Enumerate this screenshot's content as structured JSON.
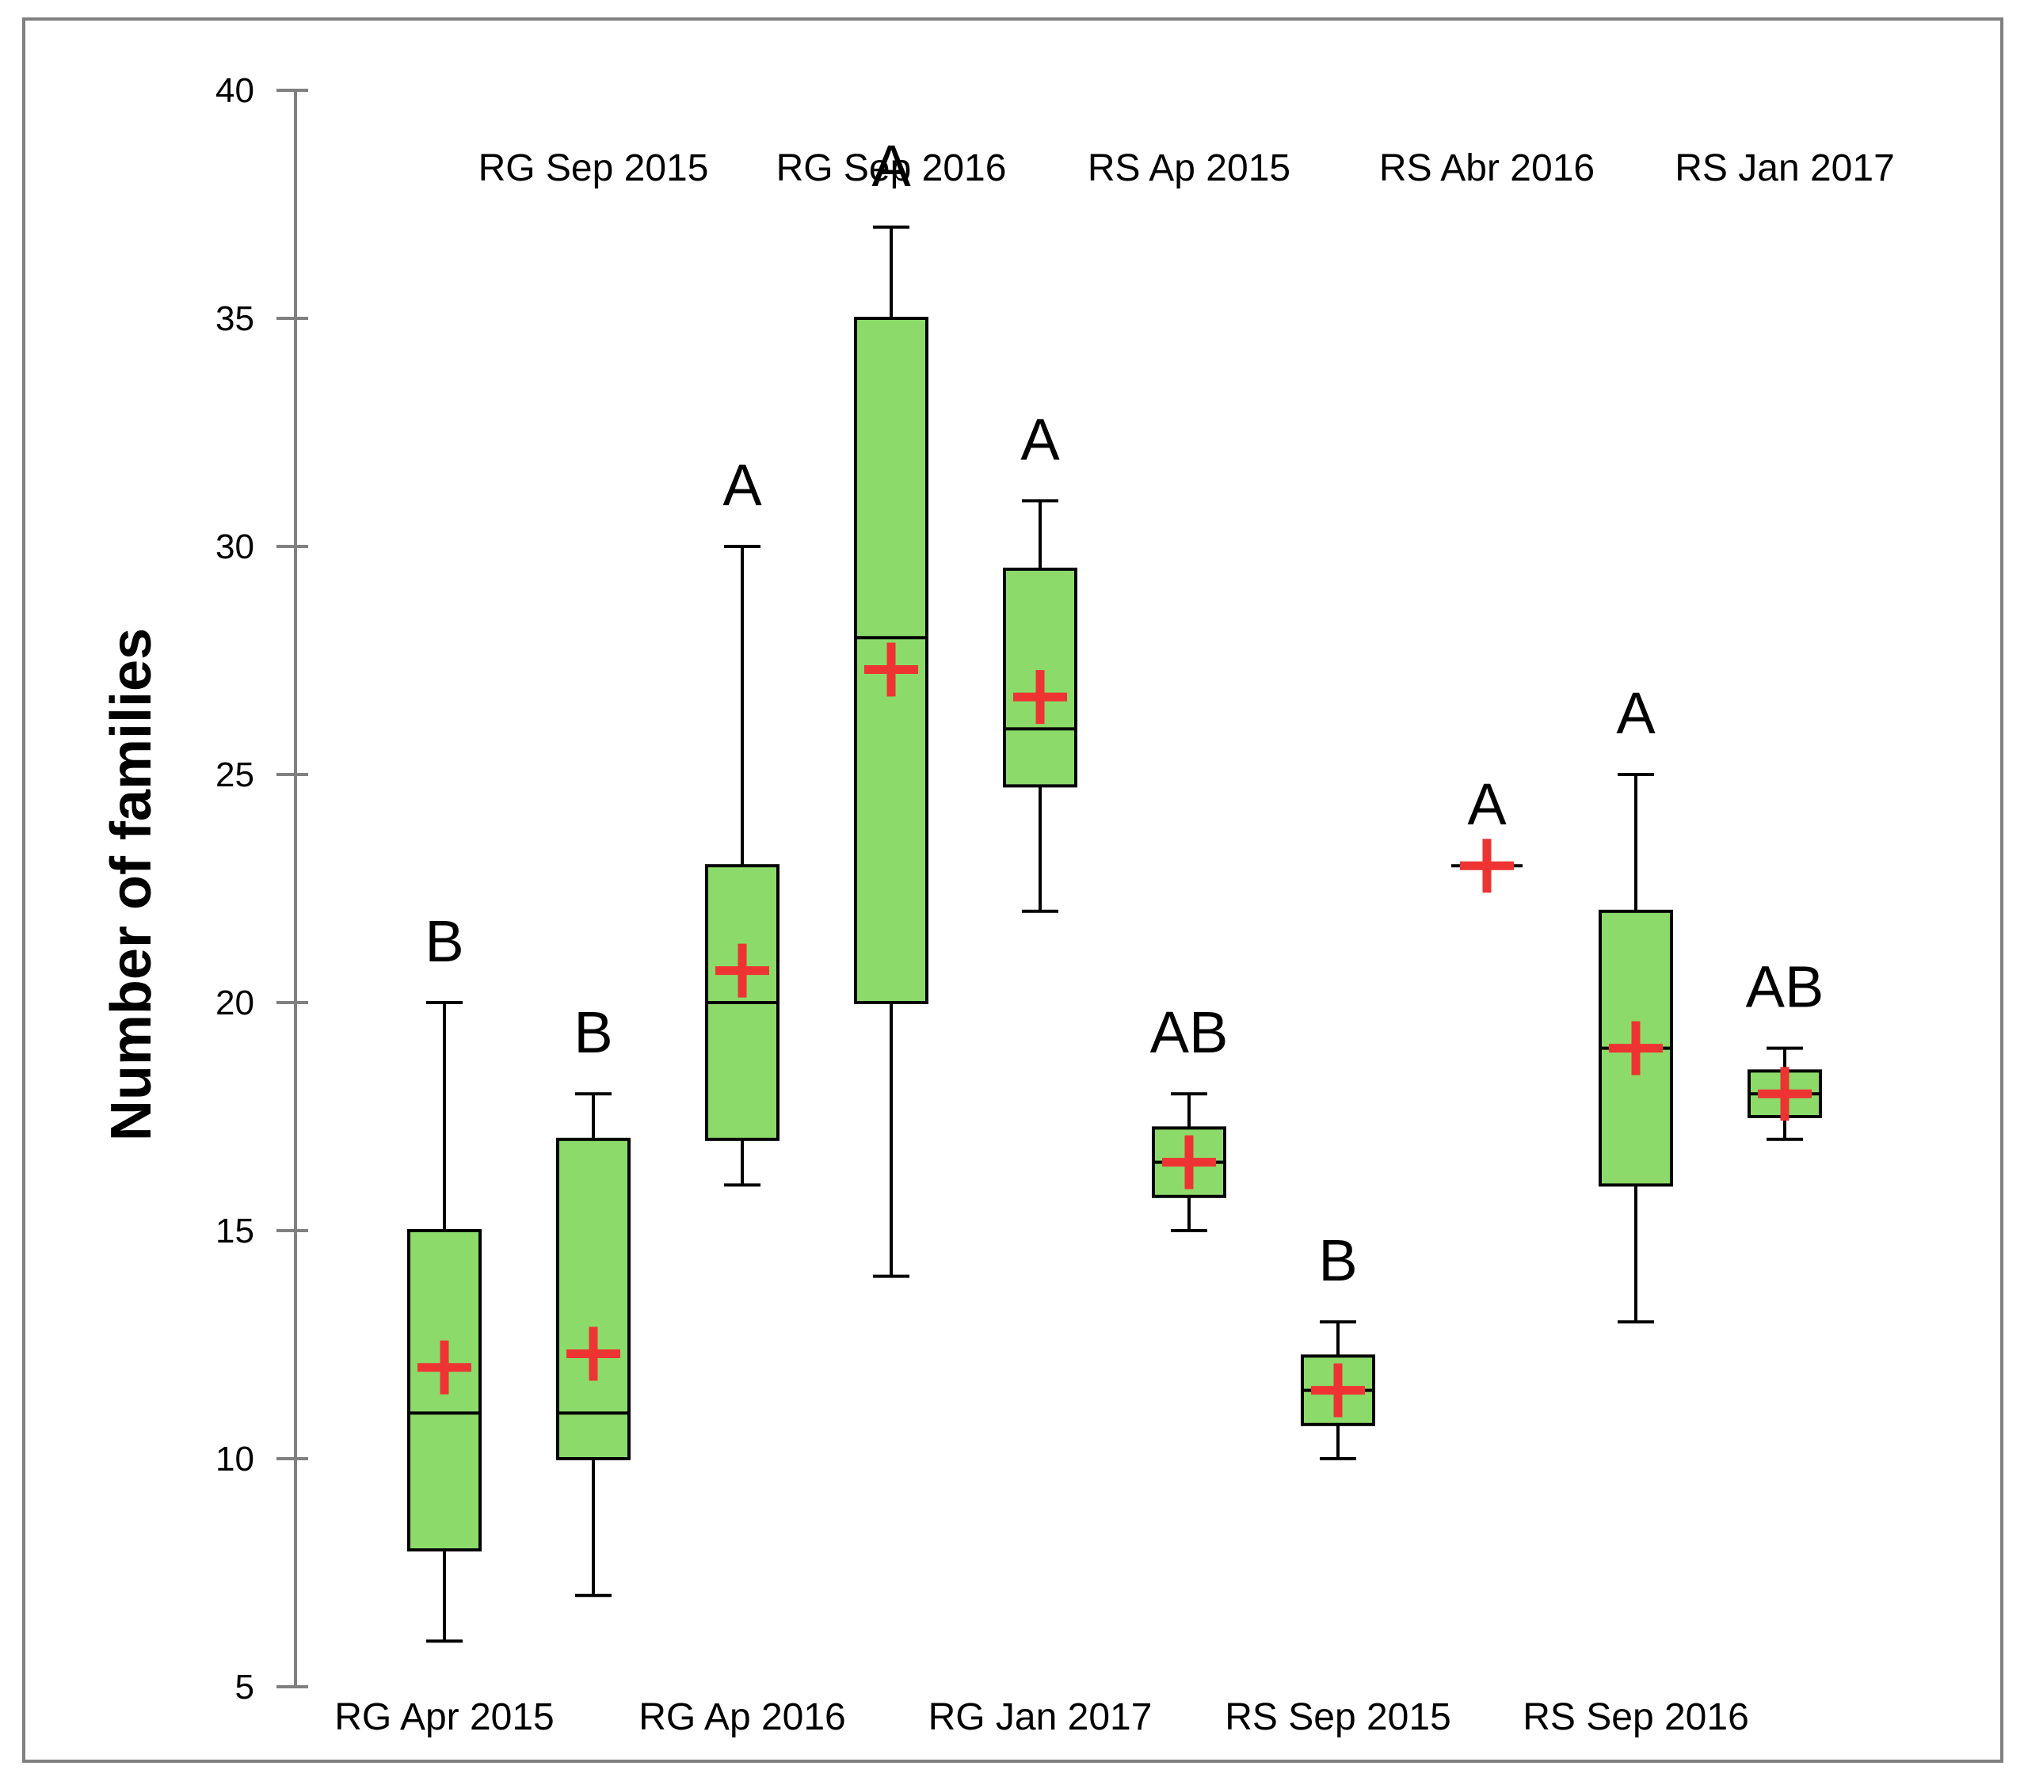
{
  "chart_data": {
    "type": "box",
    "title": "",
    "xlabel": "",
    "ylabel": "Number of families",
    "ylim": [
      5,
      40
    ],
    "yticks": [
      "5",
      "10",
      "15",
      "20",
      "25",
      "30",
      "35",
      "40"
    ],
    "grid": false,
    "legend": "none",
    "colors": {
      "box_fill": "#8cdb6a",
      "box_edge": "#000000",
      "mean_marker": "#ee3333",
      "axis": "#808080",
      "frame": "#808080"
    },
    "categories": [
      "RG Apr 2015",
      "RG Sep 2015",
      "RG Ap 2016",
      "RG Sep 2016",
      "RG Jan 2017",
      "RS Ap 2015",
      "RS Sep 2015",
      "RS Abr 2016",
      "RS Sep 2016",
      "RS Jan 2017"
    ],
    "boxes": [
      {
        "category": "RG Apr 2015",
        "min": 6,
        "q1": 8,
        "median": 11,
        "q3": 15,
        "max": 20,
        "mean": 12,
        "group_letter": "B"
      },
      {
        "category": "RG Sep 2015",
        "min": 7,
        "q1": 10,
        "median": 11,
        "q3": 17,
        "max": 18,
        "mean": 12.3,
        "group_letter": "B"
      },
      {
        "category": "RG Ap 2016",
        "min": 16,
        "q1": 17,
        "median": 20,
        "q3": 23,
        "max": 30,
        "mean": 20.7,
        "group_letter": "A"
      },
      {
        "category": "RG Sep 2016",
        "min": 14,
        "q1": 20,
        "median": 28,
        "q3": 35,
        "max": 37,
        "mean": 27.3,
        "group_letter": "A"
      },
      {
        "category": "RG Jan 2017",
        "min": 22,
        "q1": 24.75,
        "median": 26,
        "q3": 29.5,
        "max": 31,
        "mean": 26.7,
        "group_letter": "A"
      },
      {
        "category": "RS Ap 2015",
        "min": 15,
        "q1": 15.75,
        "median": 16.5,
        "q3": 17.25,
        "max": 18,
        "mean": 16.5,
        "group_letter": "AB"
      },
      {
        "category": "RS Sep 2015",
        "min": 10,
        "q1": 10.75,
        "median": 11.5,
        "q3": 12.25,
        "max": 13,
        "mean": 11.5,
        "group_letter": "B"
      },
      {
        "category": "RS Abr 2016",
        "min": 23,
        "q1": 23,
        "median": 23,
        "q3": 23,
        "max": 23,
        "mean": 23,
        "group_letter": "A"
      },
      {
        "category": "RS Sep 2016",
        "min": 13,
        "q1": 16,
        "median": 19,
        "q3": 22,
        "max": 25,
        "mean": 19,
        "group_letter": "A"
      },
      {
        "category": "RS Jan 2017",
        "min": 17,
        "q1": 17.5,
        "median": 18,
        "q3": 18.5,
        "max": 19,
        "mean": 18,
        "group_letter": "AB"
      }
    ]
  }
}
